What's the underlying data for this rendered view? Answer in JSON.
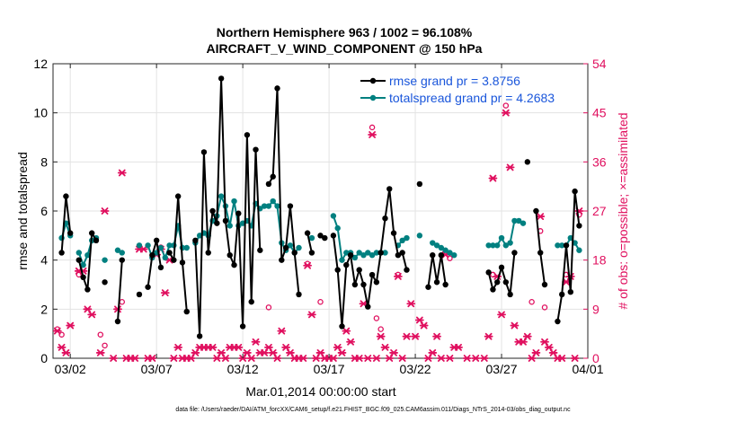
{
  "chart_data": {
    "type": "line",
    "title": [
      "Northern Hemisphere 963 / 1002 = 96.108%",
      "AIRCRAFT_V_WIND_COMPONENT @ 150 hPa"
    ],
    "xlabel": "Mar.01,2014 00:00:00 start",
    "ylabel_left": "rmse and totalspread",
    "ylabel_right": "# of obs: o=possible; ×=assimilated",
    "footnote": "data file: /Users/raeder/DAI/ATM_forcXX/CAM6_setup/f.e21.FHIST_BGC.f09_025.CAM6assim.011/Diags_NTrS_2014-03/obs_diag_output.nc",
    "xlim": [
      1.0,
      32.0
    ],
    "ylim_left": [
      0,
      12
    ],
    "ylim_right": [
      0,
      54
    ],
    "x_ticks": [
      {
        "x": 2,
        "label": "03/02"
      },
      {
        "x": 7,
        "label": "03/07"
      },
      {
        "x": 12,
        "label": "03/12"
      },
      {
        "x": 17,
        "label": "03/17"
      },
      {
        "x": 22,
        "label": "03/22"
      },
      {
        "x": 27,
        "label": "03/27"
      },
      {
        "x": 32,
        "label": "04/01"
      }
    ],
    "y_ticks_left": [
      0,
      2,
      4,
      6,
      8,
      10,
      12
    ],
    "y_ticks_right": [
      0,
      9,
      18,
      27,
      36,
      45,
      54
    ],
    "grid": true,
    "legend_position": "top-right",
    "colors": {
      "rmse": "#000000",
      "spread": "#008080",
      "obs": "#e0105f",
      "legend_text": "#1a56db"
    },
    "series": [
      {
        "name": "rmse grand pr = 3.8756",
        "key": "rmse",
        "points": [
          [
            1.5,
            4.3
          ],
          [
            1.75,
            6.6
          ],
          [
            2.0,
            5.1
          ],
          [
            null,
            null
          ],
          [
            2.5,
            4.0
          ],
          [
            2.75,
            3.3
          ],
          [
            3.0,
            2.8
          ],
          [
            3.25,
            5.1
          ],
          [
            3.5,
            4.8
          ],
          [
            null,
            null
          ],
          [
            4.0,
            3.1
          ],
          [
            null,
            null
          ],
          [
            4.75,
            1.5
          ],
          [
            5.0,
            4.0
          ],
          [
            null,
            null
          ],
          [
            6.0,
            2.6
          ],
          [
            null,
            null
          ],
          [
            6.5,
            2.9
          ],
          [
            6.75,
            4.2
          ],
          [
            7.0,
            4.8
          ],
          [
            7.25,
            3.7
          ],
          [
            null,
            null
          ],
          [
            7.75,
            4.3
          ],
          [
            8.0,
            4.0
          ],
          [
            8.25,
            6.6
          ],
          [
            8.5,
            3.9
          ],
          [
            8.75,
            1.9
          ],
          [
            null,
            null
          ],
          [
            9.25,
            4.8
          ],
          [
            9.5,
            0.9
          ],
          [
            9.75,
            8.4
          ],
          [
            10.0,
            4.3
          ],
          [
            10.25,
            6.0
          ],
          [
            10.5,
            5.5
          ],
          [
            10.75,
            11.4
          ],
          [
            11.0,
            5.6
          ],
          [
            11.25,
            4.2
          ],
          [
            11.5,
            3.8
          ],
          [
            11.75,
            5.9
          ],
          [
            12.0,
            1.3
          ],
          [
            12.25,
            9.1
          ],
          [
            12.5,
            2.3
          ],
          [
            12.75,
            8.5
          ],
          [
            13.0,
            4.4
          ],
          [
            null,
            null
          ],
          [
            13.5,
            7.1
          ],
          [
            13.75,
            7.4
          ],
          [
            14.0,
            11.0
          ],
          [
            14.25,
            4.0
          ],
          [
            14.5,
            4.5
          ],
          [
            14.75,
            6.2
          ],
          [
            15.0,
            4.3
          ],
          [
            15.25,
            2.6
          ],
          [
            null,
            null
          ],
          [
            15.75,
            5.1
          ],
          [
            16.0,
            4.3
          ],
          [
            null,
            null
          ],
          [
            16.5,
            5.0
          ],
          [
            16.75,
            4.9
          ],
          [
            null,
            null
          ],
          [
            17.25,
            5.0
          ],
          [
            17.5,
            3.6
          ],
          [
            17.75,
            1.3
          ],
          [
            18.0,
            3.8
          ],
          [
            18.25,
            4.2
          ],
          [
            18.5,
            3.0
          ],
          [
            18.75,
            3.6
          ],
          [
            19.0,
            3.0
          ],
          [
            19.25,
            2.1
          ],
          [
            19.5,
            3.4
          ],
          [
            19.75,
            3.1
          ],
          [
            20.0,
            4.3
          ],
          [
            20.25,
            5.7
          ],
          [
            20.5,
            6.9
          ],
          [
            20.75,
            5.1
          ],
          [
            21.0,
            4.2
          ],
          [
            21.25,
            4.3
          ],
          [
            21.5,
            3.6
          ],
          [
            null,
            null
          ],
          [
            22.25,
            7.1
          ],
          [
            null,
            null
          ],
          [
            22.75,
            2.9
          ],
          [
            23.0,
            4.2
          ],
          [
            23.25,
            3.1
          ],
          [
            23.5,
            4.2
          ],
          [
            23.75,
            3.0
          ],
          [
            null,
            null
          ],
          [
            26.25,
            3.5
          ],
          [
            26.5,
            2.8
          ],
          [
            26.75,
            3.1
          ],
          [
            27.0,
            3.7
          ],
          [
            27.25,
            3.1
          ],
          [
            27.5,
            2.6
          ],
          [
            27.75,
            4.3
          ],
          [
            null,
            null
          ],
          [
            28.5,
            8.0
          ],
          [
            null,
            null
          ],
          [
            29.0,
            6.0
          ],
          [
            29.25,
            4.3
          ],
          [
            29.5,
            3.0
          ],
          [
            null,
            null
          ],
          [
            30.25,
            1.5
          ],
          [
            30.5,
            2.6
          ],
          [
            30.75,
            4.6
          ],
          [
            31.0,
            2.7
          ],
          [
            31.25,
            6.8
          ],
          [
            31.5,
            5.4
          ]
        ]
      },
      {
        "name": "totalspread grand pr = 4.2683",
        "key": "spread",
        "points": [
          [
            1.5,
            4.9
          ],
          [
            1.75,
            5.5
          ],
          [
            2.0,
            5.0
          ],
          [
            null,
            null
          ],
          [
            2.5,
            4.3
          ],
          [
            2.75,
            3.8
          ],
          [
            3.0,
            4.2
          ],
          [
            3.25,
            4.8
          ],
          [
            3.5,
            4.9
          ],
          [
            null,
            null
          ],
          [
            4.0,
            4.0
          ],
          [
            null,
            null
          ],
          [
            4.75,
            4.4
          ],
          [
            5.0,
            4.3
          ],
          [
            null,
            null
          ],
          [
            6.0,
            4.6
          ],
          [
            null,
            null
          ],
          [
            6.5,
            4.6
          ],
          [
            6.75,
            4.1
          ],
          [
            7.0,
            4.3
          ],
          [
            7.25,
            4.5
          ],
          [
            7.5,
            4.1
          ],
          [
            7.75,
            4.6
          ],
          [
            8.0,
            4.6
          ],
          [
            8.25,
            5.4
          ],
          [
            8.5,
            4.5
          ],
          [
            8.75,
            4.5
          ],
          [
            null,
            null
          ],
          [
            9.25,
            4.7
          ],
          [
            9.5,
            5.0
          ],
          [
            9.75,
            5.1
          ],
          [
            10.0,
            5.0
          ],
          [
            10.25,
            5.6
          ],
          [
            10.5,
            5.8
          ],
          [
            10.75,
            6.6
          ],
          [
            11.0,
            6.2
          ],
          [
            11.25,
            5.4
          ],
          [
            11.5,
            6.4
          ],
          [
            11.75,
            5.4
          ],
          [
            12.0,
            5.5
          ],
          [
            12.25,
            5.6
          ],
          [
            12.5,
            5.4
          ],
          [
            12.75,
            6.3
          ],
          [
            13.0,
            6.1
          ],
          [
            13.25,
            6.2
          ],
          [
            13.5,
            6.2
          ],
          [
            13.75,
            6.4
          ],
          [
            14.0,
            6.2
          ],
          [
            14.25,
            4.7
          ],
          [
            14.5,
            4.4
          ],
          [
            14.75,
            4.6
          ],
          [
            15.0,
            4.3
          ],
          [
            15.25,
            4.5
          ],
          [
            null,
            null
          ],
          [
            16.0,
            4.9
          ],
          [
            null,
            null
          ],
          [
            17.25,
            5.8
          ],
          [
            17.5,
            5.3
          ],
          [
            17.75,
            4.0
          ],
          [
            18.0,
            4.3
          ],
          [
            18.25,
            4.3
          ],
          [
            18.5,
            4.1
          ],
          [
            18.75,
            4.3
          ],
          [
            19.0,
            4.2
          ],
          [
            19.25,
            4.3
          ],
          [
            19.5,
            4.2
          ],
          [
            19.75,
            4.3
          ],
          [
            20.0,
            4.3
          ],
          [
            20.25,
            4.3
          ],
          [
            null,
            null
          ],
          [
            21.0,
            4.6
          ],
          [
            21.25,
            4.8
          ],
          [
            21.5,
            4.9
          ],
          [
            null,
            null
          ],
          [
            22.25,
            5.0
          ],
          [
            null,
            null
          ],
          [
            23.0,
            4.7
          ],
          [
            23.25,
            4.6
          ],
          [
            23.5,
            4.5
          ],
          [
            23.75,
            4.4
          ],
          [
            24.0,
            4.3
          ],
          [
            24.25,
            4.2
          ],
          [
            null,
            null
          ],
          [
            26.25,
            4.6
          ],
          [
            26.5,
            4.6
          ],
          [
            26.75,
            4.6
          ],
          [
            27.0,
            4.9
          ],
          [
            27.25,
            4.6
          ],
          [
            27.5,
            4.7
          ],
          [
            27.75,
            5.6
          ],
          [
            28.0,
            5.6
          ],
          [
            28.25,
            5.5
          ],
          [
            null,
            null
          ],
          [
            30.25,
            4.6
          ],
          [
            30.5,
            4.6
          ],
          [
            30.75,
            4.6
          ],
          [
            31.0,
            4.9
          ],
          [
            31.25,
            4.7
          ],
          [
            31.5,
            4.4
          ]
        ]
      }
    ],
    "obs_assimilated": [
      [
        1.25,
        5
      ],
      [
        1.5,
        2
      ],
      [
        1.75,
        1
      ],
      [
        2.0,
        6
      ],
      [
        2.5,
        16
      ],
      [
        2.75,
        16
      ],
      [
        3.0,
        9
      ],
      [
        3.25,
        8
      ],
      [
        3.75,
        1
      ],
      [
        4.0,
        27
      ],
      [
        4.5,
        0
      ],
      [
        4.75,
        9
      ],
      [
        5.0,
        34
      ],
      [
        5.25,
        0
      ],
      [
        5.5,
        0
      ],
      [
        5.75,
        0
      ],
      [
        6.0,
        20
      ],
      [
        6.25,
        20
      ],
      [
        6.5,
        0
      ],
      [
        6.75,
        0
      ],
      [
        7.0,
        19
      ],
      [
        7.25,
        20
      ],
      [
        7.5,
        12
      ],
      [
        7.75,
        18
      ],
      [
        8.0,
        0
      ],
      [
        8.25,
        2
      ],
      [
        8.5,
        0
      ],
      [
        8.75,
        0
      ],
      [
        9.0,
        0
      ],
      [
        9.25,
        1
      ],
      [
        9.5,
        2
      ],
      [
        9.75,
        2
      ],
      [
        10.0,
        2
      ],
      [
        10.25,
        2
      ],
      [
        10.5,
        0
      ],
      [
        10.75,
        1
      ],
      [
        11.0,
        0
      ],
      [
        11.25,
        2
      ],
      [
        11.5,
        2
      ],
      [
        11.75,
        2
      ],
      [
        12.0,
        0
      ],
      [
        12.25,
        1
      ],
      [
        12.5,
        0
      ],
      [
        12.75,
        3
      ],
      [
        13.0,
        1
      ],
      [
        13.25,
        1
      ],
      [
        13.5,
        2
      ],
      [
        13.75,
        1
      ],
      [
        14.0,
        0
      ],
      [
        14.25,
        5
      ],
      [
        14.5,
        2
      ],
      [
        14.75,
        1
      ],
      [
        15.0,
        0
      ],
      [
        15.25,
        0
      ],
      [
        15.5,
        0
      ],
      [
        15.75,
        17
      ],
      [
        16.0,
        8
      ],
      [
        16.25,
        0
      ],
      [
        16.5,
        1
      ],
      [
        16.75,
        0
      ],
      [
        17.0,
        0
      ],
      [
        17.25,
        0
      ],
      [
        17.5,
        2
      ],
      [
        17.75,
        1
      ],
      [
        18.0,
        5
      ],
      [
        18.25,
        3
      ],
      [
        18.5,
        0
      ],
      [
        18.75,
        0
      ],
      [
        19.0,
        10
      ],
      [
        19.25,
        0
      ],
      [
        19.5,
        41
      ],
      [
        19.75,
        0
      ],
      [
        20.0,
        4
      ],
      [
        20.25,
        2
      ],
      [
        20.5,
        0
      ],
      [
        20.75,
        1
      ],
      [
        21.0,
        15
      ],
      [
        21.25,
        0
      ],
      [
        21.5,
        4
      ],
      [
        21.75,
        10
      ],
      [
        22.0,
        4
      ],
      [
        22.25,
        7
      ],
      [
        22.5,
        6
      ],
      [
        22.75,
        0
      ],
      [
        23.0,
        1
      ],
      [
        23.25,
        4
      ],
      [
        23.5,
        0
      ],
      [
        23.75,
        19
      ],
      [
        24.0,
        0
      ],
      [
        24.25,
        2
      ],
      [
        24.5,
        2
      ],
      [
        25.0,
        0
      ],
      [
        25.5,
        0
      ],
      [
        26.0,
        0
      ],
      [
        26.25,
        4
      ],
      [
        26.5,
        33
      ],
      [
        26.75,
        15
      ],
      [
        27.0,
        8
      ],
      [
        27.25,
        45
      ],
      [
        27.5,
        35
      ],
      [
        27.75,
        6
      ],
      [
        28.0,
        3
      ],
      [
        28.25,
        3
      ],
      [
        28.5,
        4
      ],
      [
        28.75,
        0
      ],
      [
        29.0,
        1
      ],
      [
        29.25,
        26
      ],
      [
        29.5,
        3
      ],
      [
        29.75,
        2
      ],
      [
        30.0,
        1
      ],
      [
        30.25,
        0
      ],
      [
        30.5,
        0
      ],
      [
        30.75,
        14
      ],
      [
        31.0,
        15
      ],
      [
        31.25,
        0
      ],
      [
        31.5,
        27
      ]
    ],
    "obs_possible": [
      [
        1.25,
        5
      ],
      [
        1.5,
        4
      ],
      [
        2.5,
        15
      ],
      [
        3.75,
        4
      ],
      [
        4.0,
        2
      ],
      [
        5.0,
        10
      ],
      [
        7.25,
        20
      ],
      [
        13.5,
        9
      ],
      [
        15.75,
        17
      ],
      [
        16.5,
        10
      ],
      [
        19.5,
        42
      ],
      [
        19.75,
        7
      ],
      [
        20.0,
        5
      ],
      [
        21.0,
        15
      ],
      [
        24.0,
        18
      ],
      [
        26.5,
        15
      ],
      [
        27.25,
        46
      ],
      [
        28.75,
        10
      ],
      [
        29.25,
        23
      ],
      [
        29.5,
        9
      ],
      [
        30.75,
        15
      ],
      [
        31.5,
        26
      ]
    ]
  }
}
